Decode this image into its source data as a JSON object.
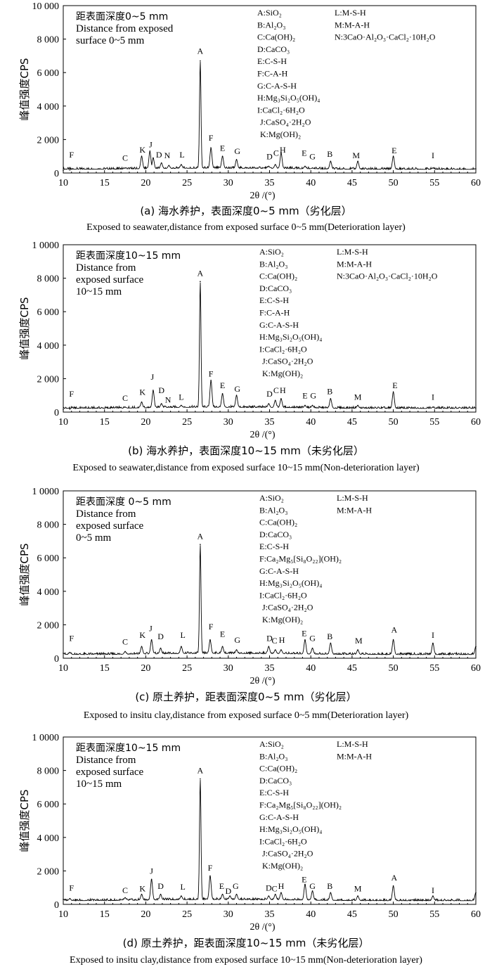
{
  "chart_data": [
    {
      "type": "line",
      "xlabel": "2θ /(°)",
      "ylabel": "峰值强度CPS",
      "xlim": [
        10,
        60
      ],
      "ylim": [
        0,
        10000
      ],
      "xticks": [
        "10",
        "15",
        "20",
        "25",
        "30",
        "35",
        "40",
        "45",
        "50",
        "55",
        "60"
      ],
      "yticks": [
        "0",
        "2 000",
        "4 000",
        "6 000",
        "8 000",
        "10 000"
      ],
      "annotation": [
        "距表面深度0~5 mm",
        "Distance from exposed",
        "surface  0~5 mm"
      ],
      "legend": [
        "A:SiO₂",
        "B:Al₂O₃",
        "C:Ca(OH)₂",
        "D:CaCO₃",
        "E:C-S-H",
        "F:C-A-H",
        "G:C-A-S-H",
        "H:Mg₃Si₂O₅(OH)₄",
        "I:CaCl₂·6H₂O",
        "J:CaSO₄·2H₂O",
        "K:Mg(OH)₂",
        "L:M-S-H",
        "M:M-A-H",
        "N:3CaO·Al₂O₃·CaCl₂·10H₂O"
      ],
      "caption_cn": "(a) 海水养护，表面深度0~5 mm（劣化层）",
      "caption_en": "Exposed to seawater,distance from exposed surface  0~5 mm(Deterioration layer)",
      "series": [
        {
          "x": [
            10,
            10.8,
            17.5,
            19.5,
            20.5,
            20.9,
            21.9,
            22.8,
            24.3,
            26.6,
            27.9,
            29.3,
            31.0,
            34.9,
            35.7,
            36.4,
            39.3,
            40.2,
            42.4,
            45.7,
            50.0,
            54.8,
            60
          ],
          "y": [
            150,
            180,
            300,
            1000,
            1300,
            900,
            600,
            450,
            500,
            6700,
            1500,
            1000,
            800,
            400,
            500,
            1200,
            400,
            300,
            700,
            700,
            1000,
            300,
            250
          ]
        }
      ],
      "peaks": [
        {
          "l": "F",
          "x": 11.0,
          "y": 800
        },
        {
          "l": "C",
          "x": 17.5,
          "y": 600
        },
        {
          "l": "K",
          "x": 19.6,
          "y": 1100
        },
        {
          "l": "J",
          "x": 20.6,
          "y": 1400
        },
        {
          "l": "D",
          "x": 21.6,
          "y": 800
        },
        {
          "l": "N",
          "x": 22.6,
          "y": 750
        },
        {
          "l": "L",
          "x": 24.4,
          "y": 800
        },
        {
          "l": "A",
          "x": 26.6,
          "y": 7000
        },
        {
          "l": "F",
          "x": 27.9,
          "y": 1800
        },
        {
          "l": "E",
          "x": 29.3,
          "y": 1200
        },
        {
          "l": "G",
          "x": 31.1,
          "y": 1000
        },
        {
          "l": "D",
          "x": 35.0,
          "y": 700
        },
        {
          "l": "C",
          "x": 35.8,
          "y": 900
        },
        {
          "l": "H",
          "x": 36.6,
          "y": 1100
        },
        {
          "l": "E",
          "x": 39.2,
          "y": 900
        },
        {
          "l": "G",
          "x": 40.2,
          "y": 700
        },
        {
          "l": "B",
          "x": 42.3,
          "y": 850
        },
        {
          "l": "M",
          "x": 45.5,
          "y": 750
        },
        {
          "l": "E",
          "x": 50.1,
          "y": 1050
        },
        {
          "l": "I",
          "x": 54.8,
          "y": 750
        }
      ]
    },
    {
      "type": "line",
      "xlabel": "2θ /(°)",
      "ylabel": "峰值强度CPS",
      "xlim": [
        10,
        60
      ],
      "ylim": [
        0,
        10000
      ],
      "xticks": [
        "10",
        "15",
        "20",
        "25",
        "30",
        "35",
        "40",
        "45",
        "50",
        "55",
        "60"
      ],
      "yticks": [
        "0",
        "2 000",
        "4 000",
        "6 000",
        "8 000",
        "1 0000"
      ],
      "annotation": [
        "距表面深度10~15 mm",
        "Distance from",
        "exposed surface",
        "10~15 mm"
      ],
      "legend": [
        "A:SiO₂",
        "B:Al₂O₃",
        "C:Ca(OH)₂",
        "D:CaCO₃",
        "E:C-S-H",
        "F:C-A-H",
        "G:C-A-S-H",
        "H:Mg₃Si₂O₅(OH)₄",
        "I:CaCl₂·6H₂O",
        "J:CaSO₄·2H₂O",
        "K:Mg(OH)₂",
        "L:M-S-H",
        "M:M-A-H",
        "N:3CaO·Al₂O₃·CaCl₂·10H₂O"
      ],
      "caption_cn": "(b) 海水养护，表面深度10~15 mm（未劣化层）",
      "caption_en": "Exposed to seawater,distance from exposed surface 10~15 mm(Non-deterioration layer)",
      "series": [
        {
          "x": [
            10,
            10.8,
            17.5,
            19.5,
            20.9,
            21.9,
            22.8,
            24.3,
            26.6,
            27.9,
            29.3,
            31.0,
            34.9,
            35.7,
            36.4,
            39.3,
            40.2,
            42.4,
            45.7,
            50.0,
            54.8,
            60
          ],
          "y": [
            150,
            180,
            300,
            600,
            1300,
            500,
            300,
            400,
            7800,
            1900,
            1100,
            1000,
            500,
            700,
            800,
            400,
            400,
            800,
            400,
            1200,
            300,
            250
          ]
        }
      ],
      "peaks": [
        {
          "l": "F",
          "x": 11.0,
          "y": 800
        },
        {
          "l": "C",
          "x": 17.5,
          "y": 550
        },
        {
          "l": "K",
          "x": 19.6,
          "y": 900
        },
        {
          "l": "J",
          "x": 20.8,
          "y": 1800
        },
        {
          "l": "D",
          "x": 21.9,
          "y": 1000
        },
        {
          "l": "N",
          "x": 22.7,
          "y": 450
        },
        {
          "l": "L",
          "x": 24.3,
          "y": 600
        },
        {
          "l": "A",
          "x": 26.6,
          "y": 8000
        },
        {
          "l": "F",
          "x": 27.9,
          "y": 2000
        },
        {
          "l": "E",
          "x": 29.3,
          "y": 1300
        },
        {
          "l": "G",
          "x": 31.1,
          "y": 1100
        },
        {
          "l": "D",
          "x": 35.0,
          "y": 800
        },
        {
          "l": "C",
          "x": 35.8,
          "y": 1000
        },
        {
          "l": "H",
          "x": 36.6,
          "y": 1000
        },
        {
          "l": "E",
          "x": 39.3,
          "y": 700
        },
        {
          "l": "G",
          "x": 40.3,
          "y": 700
        },
        {
          "l": "B",
          "x": 42.3,
          "y": 950
        },
        {
          "l": "M",
          "x": 45.7,
          "y": 600
        },
        {
          "l": "E",
          "x": 50.2,
          "y": 1300
        },
        {
          "l": "I",
          "x": 54.8,
          "y": 600
        }
      ]
    },
    {
      "type": "line",
      "xlabel": "2θ /(°)",
      "ylabel": "峰值强度CPS",
      "xlim": [
        10,
        60
      ],
      "ylim": [
        0,
        10000
      ],
      "xticks": [
        "10",
        "15",
        "20",
        "25",
        "30",
        "35",
        "40",
        "45",
        "50",
        "55",
        "60"
      ],
      "yticks": [
        "0",
        "2 000",
        "4 000",
        "6 000",
        "8 000",
        "1 0000"
      ],
      "annotation": [
        "距表面深度 0~5 mm",
        "Distance from",
        "exposed surface",
        "0~5 mm"
      ],
      "legend": [
        "A:SiO₂",
        "B:Al₂O₃",
        "C:Ca(OH)₂",
        "D:CaCO₃",
        "E:C-S-H",
        "F:Ca₂Mg₅[Si₈O₂₂](OH)₂",
        "G:C-A-S-H",
        "H:Mg₃Si₂O₅(OH)₄",
        "I:CaCl₂·6H₂O",
        "J:CaSO₄·2H₂O",
        "K:Mg(OH)₂",
        "L:M-S-H",
        "M:M-A-H"
      ],
      "caption_cn": "(c) 原土养护，距表面深度0~5 mm（劣化层）",
      "caption_en": "Exposed to insitu clay,distance from exposed surface  0~5 mm(Deterioration layer)",
      "series": [
        {
          "x": [
            10,
            10.8,
            17.5,
            19.5,
            20.7,
            21.8,
            24.3,
            26.6,
            27.8,
            29.3,
            31.0,
            34.9,
            35.7,
            36.4,
            39.3,
            40.2,
            42.4,
            45.7,
            50.0,
            54.8,
            60
          ],
          "y": [
            300,
            350,
            400,
            700,
            1100,
            600,
            700,
            6800,
            1100,
            700,
            500,
            700,
            500,
            500,
            1100,
            600,
            900,
            500,
            1100,
            900,
            700
          ]
        }
      ],
      "peaks": [
        {
          "l": "F",
          "x": 11.0,
          "y": 900
        },
        {
          "l": "C",
          "x": 17.5,
          "y": 700
        },
        {
          "l": "K",
          "x": 19.6,
          "y": 1100
        },
        {
          "l": "J",
          "x": 20.6,
          "y": 1500
        },
        {
          "l": "D",
          "x": 21.8,
          "y": 1000
        },
        {
          "l": "L",
          "x": 24.5,
          "y": 1100
        },
        {
          "l": "A",
          "x": 26.6,
          "y": 7000
        },
        {
          "l": "F",
          "x": 27.9,
          "y": 1600
        },
        {
          "l": "E",
          "x": 29.3,
          "y": 1150
        },
        {
          "l": "G",
          "x": 31.1,
          "y": 800
        },
        {
          "l": "D",
          "x": 35.0,
          "y": 900
        },
        {
          "l": "C",
          "x": 35.6,
          "y": 750
        },
        {
          "l": "H",
          "x": 36.5,
          "y": 800
        },
        {
          "l": "E",
          "x": 39.2,
          "y": 1200
        },
        {
          "l": "G",
          "x": 40.2,
          "y": 900
        },
        {
          "l": "B",
          "x": 42.3,
          "y": 1000
        },
        {
          "l": "M",
          "x": 45.8,
          "y": 750
        },
        {
          "l": "A",
          "x": 50.1,
          "y": 1400
        },
        {
          "l": "I",
          "x": 54.8,
          "y": 1100
        }
      ]
    },
    {
      "type": "line",
      "xlabel": "2θ /(°)",
      "ylabel": "峰值强度CPS",
      "xlim": [
        10,
        60
      ],
      "ylim": [
        0,
        10000
      ],
      "xticks": [
        "10",
        "15",
        "20",
        "25",
        "30",
        "35",
        "40",
        "45",
        "50",
        "55",
        "60"
      ],
      "yticks": [
        "0",
        "2 000",
        "4 000",
        "6 000",
        "8 000",
        "1 0000"
      ],
      "annotation": [
        "距表面深度10~15 mm",
        "Distance from",
        "exposed surface",
        "10~15 mm"
      ],
      "legend": [
        "A:SiO₂",
        "B:Al₂O₃",
        "C:Ca(OH)₂",
        "D:CaCO₃",
        "E:C-S-H",
        "F:Ca₂Mg₅[Si₈O₂₂](OH)₂",
        "G:C-A-S-H",
        "H:Mg₃Si₂O₅(OH)₄",
        "I:CaCl₂·6H₂O",
        "J:CaSO₄·2H₂O",
        "K:Mg(OH)₂",
        "L:M-S-H",
        "M:M-A-H"
      ],
      "caption_cn": "(d) 原土养护，距表面深度10~15 mm（未劣化层）",
      "caption_en": "Exposed to insitu clay,distance from exposed surface 10~15 mm(Non-deterioration layer)",
      "series": [
        {
          "x": [
            10,
            10.8,
            17.5,
            19.5,
            20.7,
            21.8,
            24.3,
            26.6,
            27.8,
            29.3,
            30.2,
            31.0,
            34.9,
            35.7,
            36.4,
            39.3,
            40.2,
            42.4,
            45.7,
            50.0,
            54.8,
            60
          ],
          "y": [
            300,
            350,
            400,
            600,
            1500,
            600,
            500,
            7500,
            1700,
            600,
            500,
            600,
            500,
            600,
            700,
            1200,
            800,
            700,
            500,
            1100,
            500,
            700
          ]
        }
      ],
      "peaks": [
        {
          "l": "F",
          "x": 11.0,
          "y": 700
        },
        {
          "l": "C",
          "x": 17.5,
          "y": 550
        },
        {
          "l": "K",
          "x": 19.6,
          "y": 650
        },
        {
          "l": "J",
          "x": 20.7,
          "y": 1700
        },
        {
          "l": "D",
          "x": 21.8,
          "y": 800
        },
        {
          "l": "L",
          "x": 24.5,
          "y": 750
        },
        {
          "l": "A",
          "x": 26.6,
          "y": 7700
        },
        {
          "l": "F",
          "x": 27.8,
          "y": 1900
        },
        {
          "l": "E",
          "x": 29.2,
          "y": 800
        },
        {
          "l": "D",
          "x": 30.0,
          "y": 500
        },
        {
          "l": "G",
          "x": 30.9,
          "y": 800
        },
        {
          "l": "D",
          "x": 34.9,
          "y": 700
        },
        {
          "l": "C",
          "x": 35.6,
          "y": 650
        },
        {
          "l": "H",
          "x": 36.4,
          "y": 800
        },
        {
          "l": "E",
          "x": 39.2,
          "y": 1200
        },
        {
          "l": "G",
          "x": 40.2,
          "y": 800
        },
        {
          "l": "B",
          "x": 42.3,
          "y": 800
        },
        {
          "l": "M",
          "x": 45.7,
          "y": 650
        },
        {
          "l": "A",
          "x": 50.1,
          "y": 1300
        },
        {
          "l": "I",
          "x": 54.8,
          "y": 550
        }
      ]
    }
  ]
}
